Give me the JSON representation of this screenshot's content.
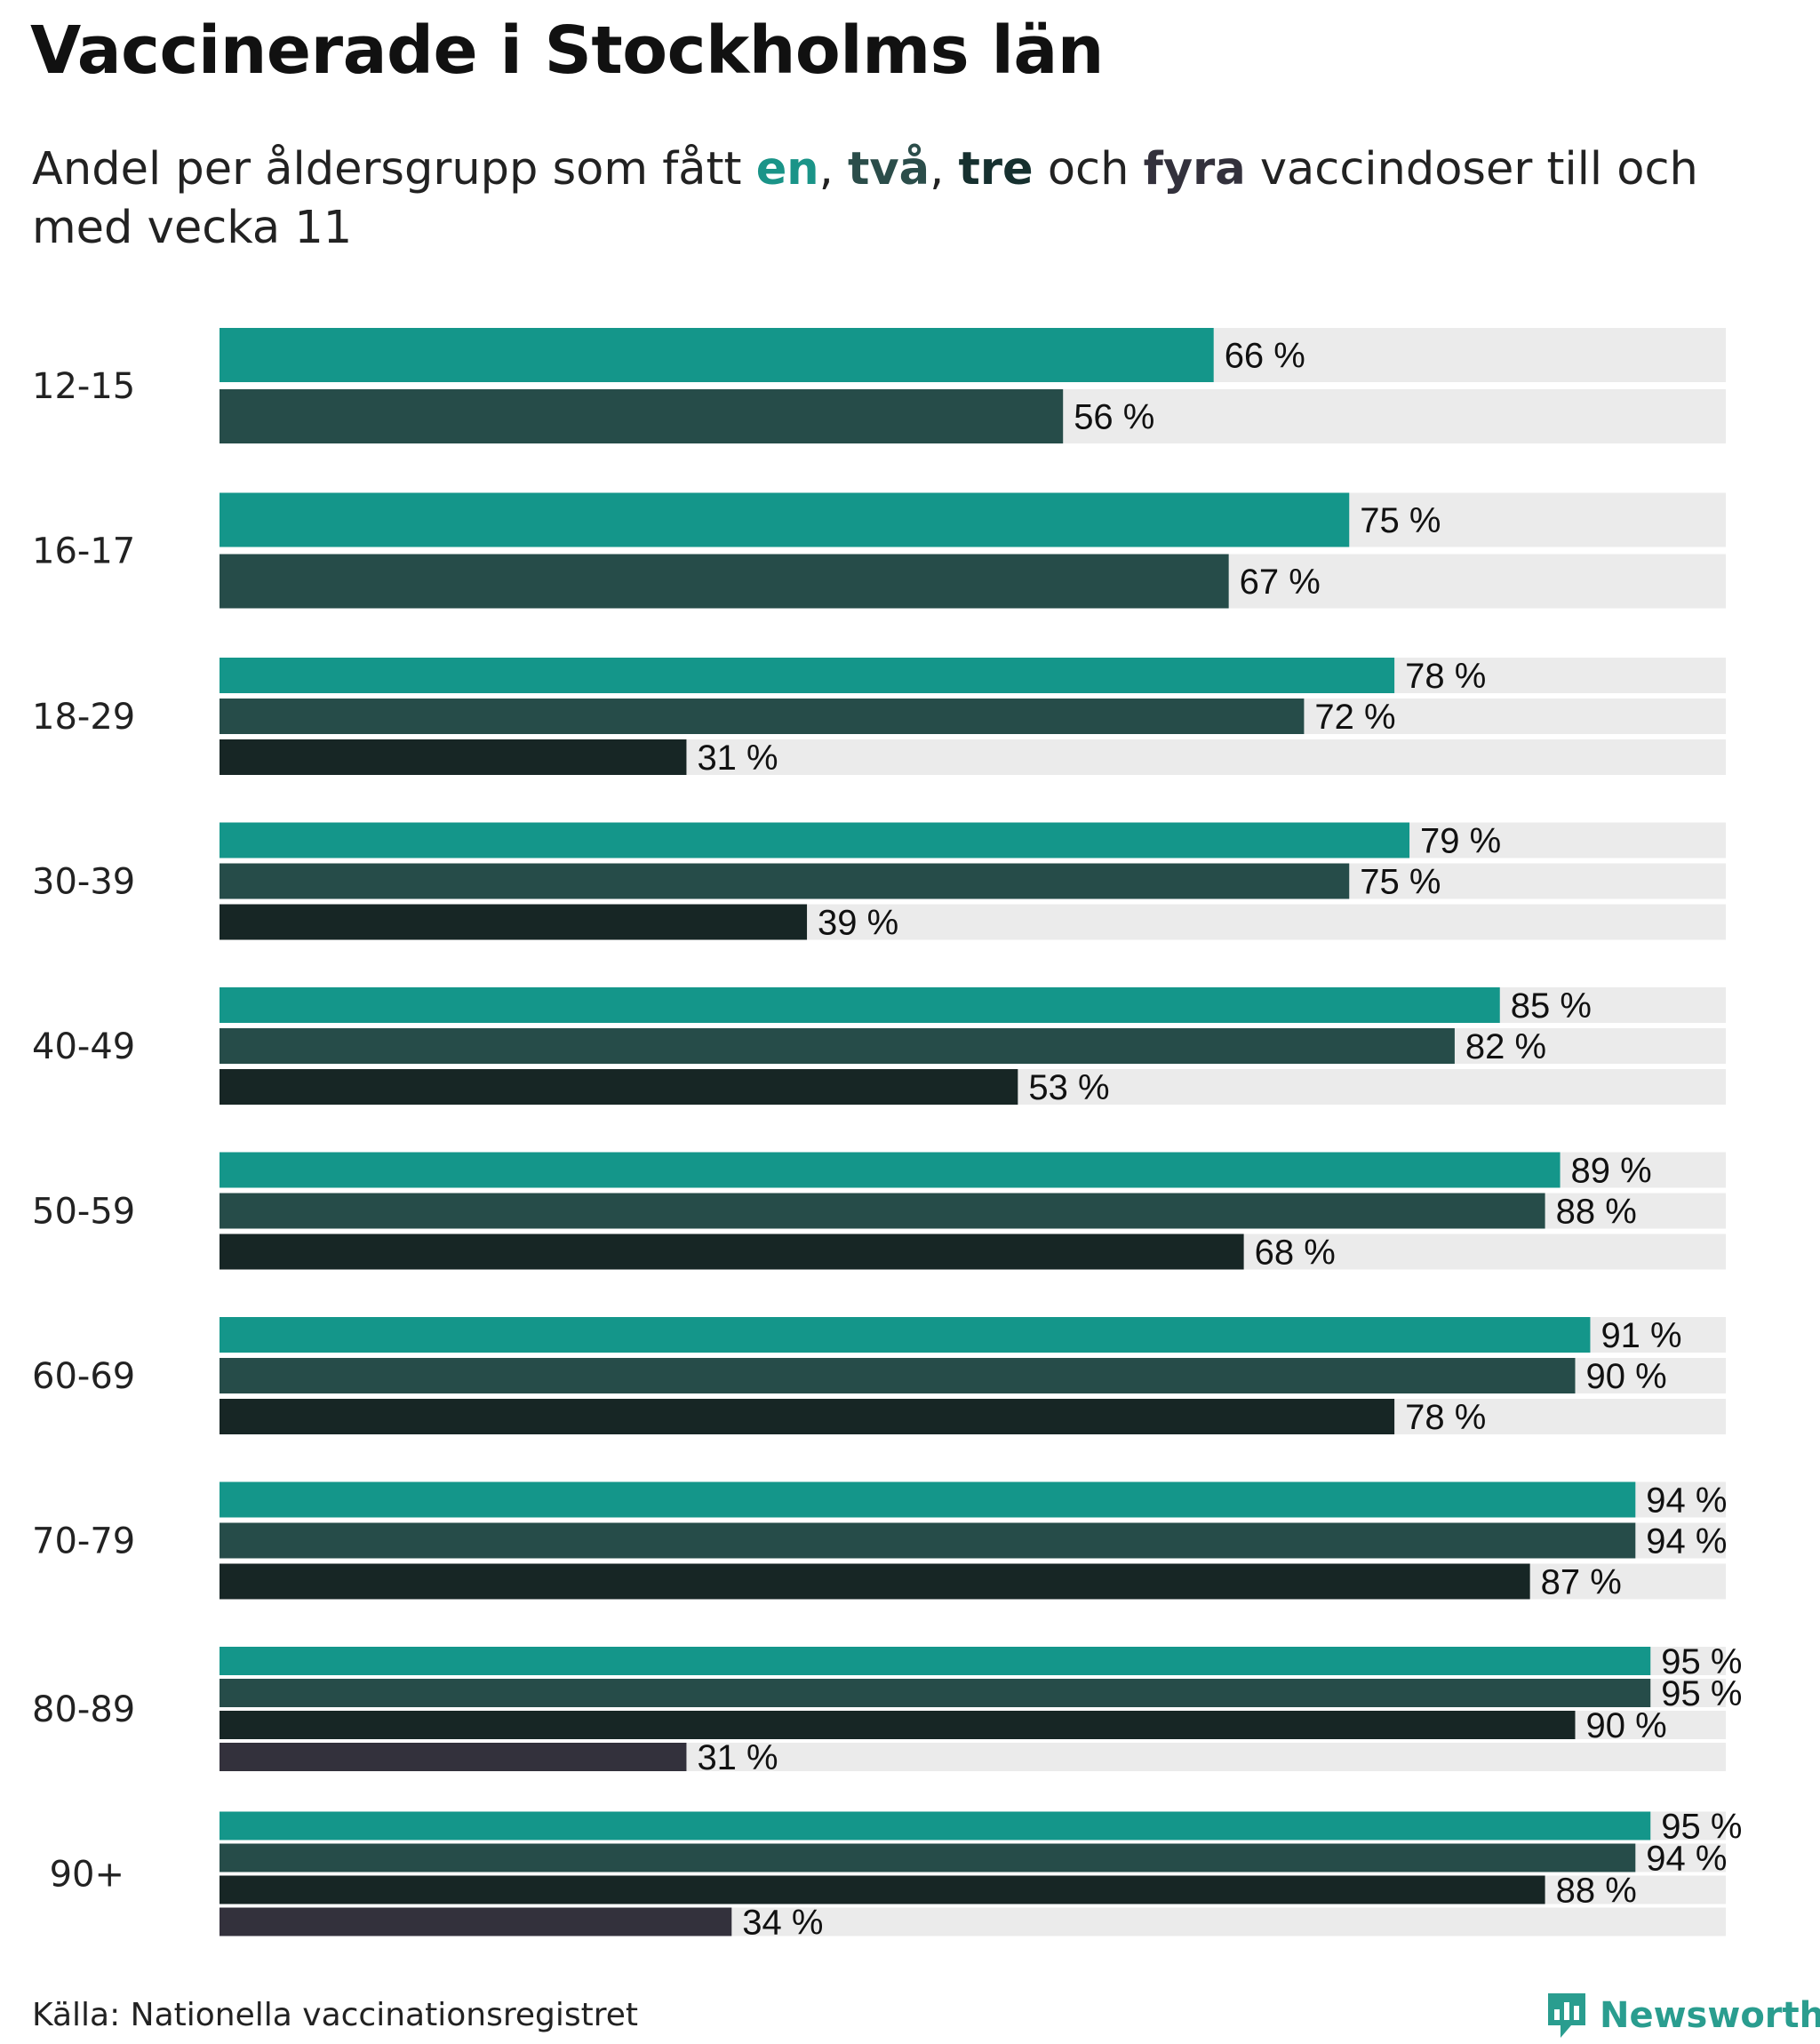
{
  "chart_data": {
    "type": "bar",
    "orientation": "horizontal",
    "title": "Vaccinerade i Stockholms län",
    "subtitle_parts": [
      {
        "text": "Andel per åldersgrupp som fått ",
        "color": null
      },
      {
        "text": "en",
        "color": "#1a9488"
      },
      {
        "text": ", ",
        "color": null
      },
      {
        "text": "två",
        "color": "#2b4d4a"
      },
      {
        "text": ", ",
        "color": null
      },
      {
        "text": "tre",
        "color": "#16302f"
      },
      {
        "text": " och ",
        "color": null
      },
      {
        "text": "fyra",
        "color": "#33313c"
      },
      {
        "text": " vaccindoser till och med vecka 11",
        "color": null
      }
    ],
    "xlim": [
      0,
      100
    ],
    "value_suffix": " %",
    "series": [
      {
        "name": "en",
        "color": "#14968a"
      },
      {
        "name": "två",
        "color": "#264c49"
      },
      {
        "name": "tre",
        "color": "#172625"
      },
      {
        "name": "fyra",
        "color": "#33313c"
      }
    ],
    "track_color": "#ebebeb",
    "groups": [
      {
        "label": "12-15",
        "values": [
          66,
          56
        ]
      },
      {
        "label": "16-17",
        "values": [
          75,
          67
        ]
      },
      {
        "label": "18-29",
        "values": [
          78,
          72,
          31
        ]
      },
      {
        "label": "30-39",
        "values": [
          79,
          75,
          39
        ]
      },
      {
        "label": "40-49",
        "values": [
          85,
          82,
          53
        ]
      },
      {
        "label": "50-59",
        "values": [
          89,
          88,
          68
        ]
      },
      {
        "label": "60-69",
        "values": [
          91,
          90,
          78
        ]
      },
      {
        "label": "70-79",
        "values": [
          94,
          94,
          87
        ]
      },
      {
        "label": "80-89",
        "values": [
          95,
          95,
          90,
          31
        ]
      },
      {
        "label": "90+",
        "values": [
          95,
          94,
          88,
          34
        ]
      }
    ]
  },
  "footer": {
    "source": "Källa: Nationella vaccinationsregistret",
    "brand": "Newsworthy",
    "brand_color": "#2a9d8f",
    "brand_icon": "bar-chart-speech-bubble-icon"
  }
}
